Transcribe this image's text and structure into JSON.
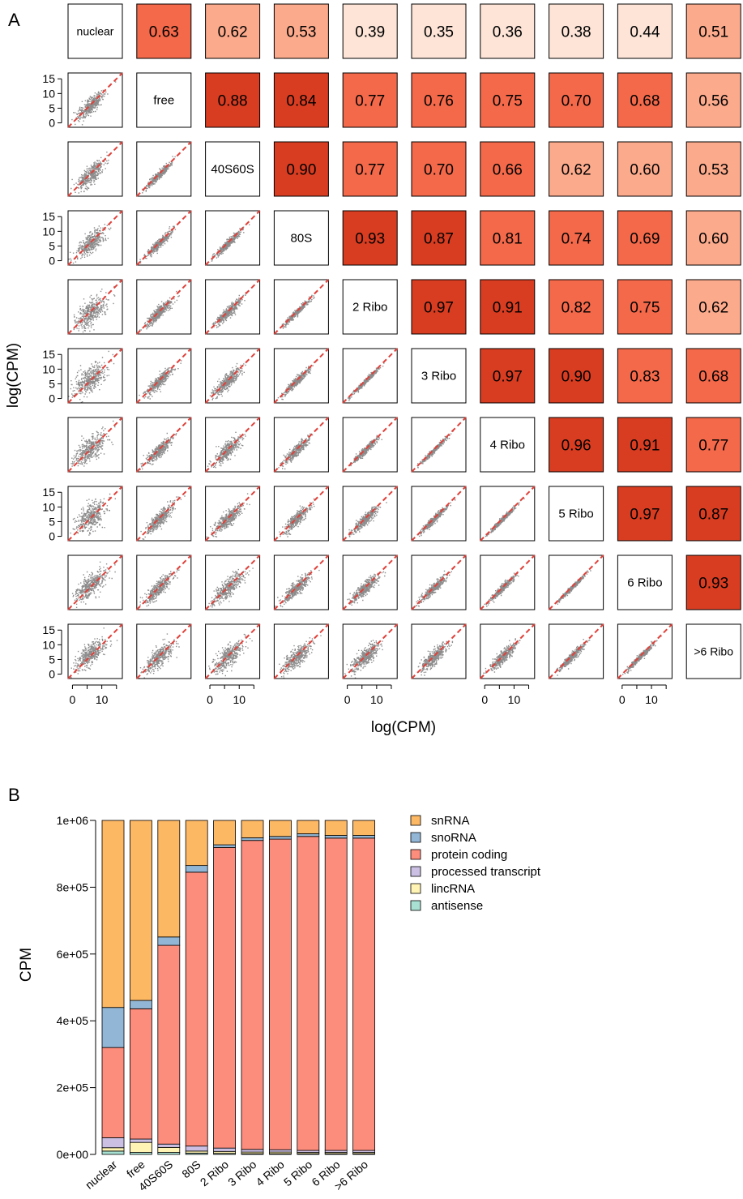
{
  "panel_a": {
    "label": "A",
    "xlabel": "log(CPM)",
    "ylabel": "log(CPM)",
    "y_ticks": [
      "15",
      "10",
      "5",
      "0"
    ],
    "x_ticks": [
      "0",
      "10"
    ]
  },
  "panel_b": {
    "label": "B",
    "ylabel": "CPM",
    "y_ticks": [
      "0e+00",
      "2e+05",
      "4e+05",
      "6e+05",
      "8e+05",
      "1e+06"
    ]
  },
  "colors": {
    "snRNA": "#fdb863",
    "snoRNA": "#92b6d5",
    "protein coding": "#fc8d7d",
    "processed transcript": "#cbc0e4",
    "lincRNA": "#fff4b3",
    "antisense": "#a8e0d1",
    "scatter_point": "#000000",
    "diagonal": "#e0413a"
  },
  "chart_data": [
    {
      "type": "heatmap",
      "title": "",
      "xlabel": "log(CPM)",
      "ylabel": "log(CPM)",
      "samples": [
        "nuclear",
        "free",
        "40S60S",
        "80S",
        "2 Ribo",
        "3 Ribo",
        "4 Ribo",
        "5 Ribo",
        "6 Ribo",
        ">6 Ribo"
      ],
      "correlations_upper_triangle": [
        [
          0.63,
          0.62,
          0.53,
          0.39,
          0.35,
          0.36,
          0.38,
          0.44,
          0.51
        ],
        [
          0.88,
          0.84,
          0.77,
          0.76,
          0.75,
          0.7,
          0.68,
          0.56
        ],
        [
          0.9,
          0.77,
          0.7,
          0.66,
          0.62,
          0.6,
          0.53
        ],
        [
          0.93,
          0.87,
          0.81,
          0.74,
          0.69,
          0.6
        ],
        [
          0.97,
          0.91,
          0.82,
          0.75,
          0.62
        ],
        [
          0.97,
          0.9,
          0.83,
          0.68
        ],
        [
          0.96,
          0.91,
          0.77
        ],
        [
          0.97,
          0.87
        ],
        [
          0.93
        ]
      ],
      "scatter_axis_range": [
        0,
        15
      ]
    },
    {
      "type": "bar",
      "stacked": true,
      "title": "",
      "xlabel": "",
      "ylabel": "CPM",
      "ylim": [
        0,
        1000000
      ],
      "categories": [
        "nuclear",
        "free",
        "40S60S",
        "80S",
        "2 Ribo",
        "3 Ribo",
        "4 Ribo",
        "5 Ribo",
        "6 Ribo",
        ">6 Ribo"
      ],
      "series": [
        {
          "name": "antisense",
          "values": [
            10000,
            6000,
            6000,
            4000,
            3000,
            2000,
            2000,
            2000,
            2000,
            2000
          ]
        },
        {
          "name": "lincRNA",
          "values": [
            10000,
            30000,
            15000,
            6000,
            6000,
            5000,
            5000,
            4000,
            4000,
            4000
          ]
        },
        {
          "name": "processed transcript",
          "values": [
            30000,
            10000,
            10000,
            15000,
            10000,
            8000,
            7000,
            6000,
            6000,
            6000
          ]
        },
        {
          "name": "protein coding",
          "values": [
            270000,
            390000,
            595000,
            820000,
            900000,
            925000,
            930000,
            940000,
            935000,
            935000
          ]
        },
        {
          "name": "snoRNA",
          "values": [
            120000,
            25000,
            25000,
            20000,
            8000,
            8000,
            8000,
            8000,
            8000,
            8000
          ]
        },
        {
          "name": "snRNA",
          "values": [
            560000,
            539000,
            349000,
            135000,
            73000,
            52000,
            48000,
            40000,
            45000,
            45000
          ]
        }
      ],
      "legend": [
        "snRNA",
        "snoRNA",
        "protein coding",
        "processed transcript",
        "lincRNA",
        "antisense"
      ],
      "legend_placement": "top-right"
    }
  ]
}
